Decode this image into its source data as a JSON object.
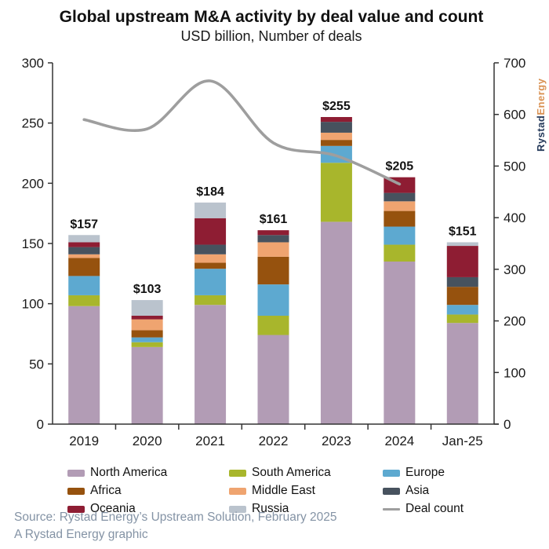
{
  "header": {
    "title": "Global upstream M&A activity by deal value and count",
    "subtitle": "USD billion, Number of deals"
  },
  "branding": {
    "part1": "Rystad",
    "part2": "Energy"
  },
  "chart_data": {
    "type": "bar",
    "subtype": "stacked-bar-with-line",
    "categories": [
      "2019",
      "2020",
      "2021",
      "2022",
      "2023",
      "2024",
      "Jan-25"
    ],
    "series": [
      {
        "name": "North America",
        "color": "#b29cb5",
        "values": [
          98,
          64,
          99,
          74,
          168,
          135,
          84
        ]
      },
      {
        "name": "South America",
        "color": "#a8b62c",
        "values": [
          9,
          4,
          8,
          16,
          49,
          14,
          7
        ]
      },
      {
        "name": "Europe",
        "color": "#5da9d0",
        "values": [
          16,
          4,
          22,
          26,
          14,
          15,
          8
        ]
      },
      {
        "name": "Africa",
        "color": "#96520e",
        "values": [
          15,
          6,
          5,
          23,
          5,
          13,
          15
        ]
      },
      {
        "name": "Middle East",
        "color": "#efa470",
        "values": [
          3,
          9,
          7,
          12,
          6,
          8,
          0
        ]
      },
      {
        "name": "Asia",
        "color": "#47525e",
        "values": [
          6,
          0,
          8,
          6,
          9,
          7,
          8
        ]
      },
      {
        "name": "Oceania",
        "color": "#8e1d33",
        "values": [
          4,
          3,
          22,
          4,
          4,
          13,
          26
        ]
      },
      {
        "name": "Russia",
        "color": "#bac3cd",
        "values": [
          6,
          13,
          13,
          0,
          0,
          0,
          3
        ]
      }
    ],
    "bar_totals": [
      157,
      103,
      184,
      161,
      255,
      205,
      151
    ],
    "bar_labels": [
      "$157",
      "$103",
      "$184",
      "$161",
      "$255",
      "$205",
      "$151"
    ],
    "line": {
      "name": "Deal count",
      "color": "#9e9e9e",
      "values": [
        590,
        572,
        665,
        545,
        520,
        465
      ]
    },
    "left_axis": {
      "max": 300,
      "ticks": [
        0,
        50,
        100,
        150,
        200,
        250,
        300
      ]
    },
    "right_axis": {
      "max": 700,
      "ticks": [
        0,
        100,
        200,
        300,
        400,
        500,
        600,
        700
      ]
    },
    "axis_color": "#333333",
    "label_color": "#1a1a1a",
    "title": "Global upstream M&A activity by deal value and count",
    "xlabel": "",
    "ylabel_left": "USD billion",
    "ylabel_right": "Number of deals",
    "grid": false,
    "legend_position": "bottom"
  },
  "legend": {
    "items": [
      {
        "label": "North America",
        "color": "#b29cb5",
        "kind": "box"
      },
      {
        "label": "South America",
        "color": "#a8b62c",
        "kind": "box"
      },
      {
        "label": "Europe",
        "color": "#5da9d0",
        "kind": "box"
      },
      {
        "label": "Africa",
        "color": "#96520e",
        "kind": "box"
      },
      {
        "label": "Middle East",
        "color": "#efa470",
        "kind": "box"
      },
      {
        "label": "Asia",
        "color": "#47525e",
        "kind": "box"
      },
      {
        "label": "Oceania",
        "color": "#8e1d33",
        "kind": "box"
      },
      {
        "label": "Russia",
        "color": "#bac3cd",
        "kind": "box"
      },
      {
        "label": "Deal count",
        "color": "#9e9e9e",
        "kind": "line"
      }
    ]
  },
  "footer": {
    "line1": "Source: Rystad Energy’s Upstream Solution, February 2025",
    "line2": "A Rystad Energy graphic"
  }
}
